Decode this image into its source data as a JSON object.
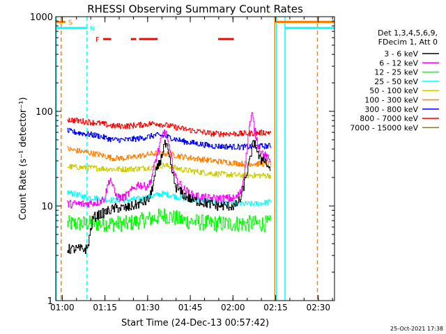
{
  "chart_data": {
    "type": "line",
    "title": "RHESSI Observing Summary Count Rates",
    "xlabel": "Start Time (24-Dec-13 00:57:42)",
    "ylabel": "Count Rate (s⁻¹ detector⁻¹)",
    "yscale": "log",
    "ylim": [
      1,
      1000
    ],
    "xlim_minutes_after_start": [
      0,
      98
    ],
    "x_ticks": [
      {
        "label": "01:00",
        "t": 2.3
      },
      {
        "label": "01:15",
        "t": 17.3
      },
      {
        "label": "01:30",
        "t": 32.3
      },
      {
        "label": "01:45",
        "t": 47.3
      },
      {
        "label": "02:00",
        "t": 62.3
      },
      {
        "label": "02:15",
        "t": 77.3
      },
      {
        "label": "02:30",
        "t": 92.3
      }
    ],
    "y_ticks": [
      {
        "label": "1",
        "v": 1
      },
      {
        "label": "10",
        "v": 10
      },
      {
        "label": "100",
        "v": 100
      },
      {
        "label": "1000",
        "v": 1000
      }
    ],
    "legend_header": [
      "Det 1,3,4,5,6,9,",
      "FDecim 1, Att 0"
    ],
    "legend_position": "right",
    "series": [
      {
        "name": "3 - 6 keV",
        "color": "#000000",
        "t": [
          4,
          11,
          13,
          15,
          17,
          19,
          21,
          23,
          25,
          27,
          29,
          31,
          33,
          35,
          37,
          38,
          39,
          40,
          42,
          45,
          48,
          51,
          54,
          57,
          60,
          63,
          65,
          66,
          67,
          68,
          69,
          70,
          71,
          72,
          73,
          74,
          75
        ],
        "values": [
          3.5,
          3.5,
          7.5,
          8,
          8.5,
          9,
          9.5,
          9.5,
          9.5,
          10,
          10.5,
          11,
          12,
          22,
          32,
          45,
          42,
          30,
          16,
          13,
          11.5,
          11,
          10.5,
          10,
          10,
          10,
          12,
          16,
          22,
          28,
          42,
          48,
          35,
          30,
          33,
          28,
          25
        ]
      },
      {
        "name": "6 - 12 keV",
        "color": "#ff00ff",
        "t": [
          4,
          10,
          15,
          17,
          19,
          21,
          23,
          25,
          27,
          29,
          31,
          33,
          35,
          37,
          38,
          39,
          40,
          42,
          45,
          48,
          51,
          54,
          57,
          60,
          63,
          65,
          66,
          67,
          68,
          69,
          70,
          71,
          72,
          73,
          74,
          75
        ],
        "values": [
          10.5,
          10.5,
          11,
          12,
          20,
          13,
          12,
          13,
          15,
          17,
          16,
          17,
          30,
          50,
          62,
          55,
          38,
          20,
          15,
          13,
          12.5,
          12,
          12,
          12,
          12,
          14,
          20,
          35,
          70,
          95,
          60,
          45,
          38,
          35,
          33,
          30
        ]
      },
      {
        "name": "12 - 25 keV",
        "color": "#00ff00",
        "t": [
          4,
          15,
          25,
          30,
          35,
          38,
          45,
          55,
          65,
          70,
          75
        ],
        "values": [
          6.5,
          6.5,
          6.5,
          7,
          7.5,
          8,
          7,
          6.5,
          6.5,
          6.5,
          6.5
        ]
      },
      {
        "name": "25 - 50 keV",
        "color": "#00ffff",
        "t": [
          4,
          10,
          15,
          20,
          25,
          30,
          35,
          38,
          45,
          55,
          65,
          70,
          75
        ],
        "values": [
          14,
          12.5,
          12,
          11.5,
          11.5,
          12,
          13,
          13.5,
          12,
          11,
          10.5,
          10.5,
          11
        ]
      },
      {
        "name": "50 - 100 keV",
        "color": "#cccc00",
        "t": [
          4,
          15,
          20,
          25,
          30,
          35,
          38,
          45,
          55,
          65,
          75
        ],
        "values": [
          26,
          25,
          24.5,
          24.5,
          25,
          26,
          27,
          24,
          22,
          21,
          21
        ]
      },
      {
        "name": "100 - 300 keV",
        "color": "#ff8000",
        "t": [
          4,
          15,
          20,
          25,
          30,
          35,
          38,
          45,
          55,
          65,
          75
        ],
        "values": [
          40,
          35,
          32,
          32,
          34,
          36,
          36,
          33,
          30,
          28,
          28
        ]
      },
      {
        "name": "300 - 800 keV",
        "color": "#0000ff",
        "t": [
          4,
          15,
          20,
          25,
          30,
          35,
          38,
          45,
          55,
          65,
          75
        ],
        "values": [
          62,
          55,
          50,
          50,
          52,
          56,
          55,
          48,
          43,
          42,
          43
        ]
      },
      {
        "name": "800 - 7000 keV",
        "color": "#ff0000",
        "t": [
          4,
          15,
          20,
          25,
          30,
          35,
          38,
          45,
          55,
          65,
          75
        ],
        "values": [
          82,
          75,
          70,
          70,
          72,
          75,
          72,
          65,
          58,
          58,
          60
        ]
      },
      {
        "name": "7000 - 15000 keV",
        "color": "#808000",
        "t": [],
        "values": []
      }
    ],
    "annotations": [
      {
        "label": "S",
        "color": "#ff8000",
        "t": 3.4,
        "level": 880
      },
      {
        "label": "N",
        "color": "#00ffff",
        "t": 11.0,
        "level": 760
      },
      {
        "label": "F",
        "color": "#ff0000",
        "t": 13.0,
        "level": 580
      }
    ],
    "flare_intervals": [
      {
        "t0": 16.7,
        "t1": 19.5,
        "level": 580
      },
      {
        "t0": 26.4,
        "t1": 28.3,
        "level": 580
      },
      {
        "t0": 29.3,
        "t1": 35.8,
        "level": 580
      },
      {
        "t0": 57.1,
        "t1": 62.6,
        "level": 580
      }
    ],
    "saa_intervals": [
      {
        "t0": 0,
        "t1": 3.4,
        "level": 880
      },
      {
        "t0": 77.5,
        "t1": 98,
        "level": 880
      }
    ],
    "night_intervals": [
      {
        "t0": 0,
        "t1": 11.0,
        "level": 760
      },
      {
        "t0": 80.6,
        "t1": 98,
        "level": 760
      }
    ],
    "vlines": [
      {
        "t": 0.2,
        "color": "#00ffff",
        "style": "solid"
      },
      {
        "t": 1.9,
        "color": "#ff8000",
        "style": "dash"
      },
      {
        "t": 11.0,
        "color": "#00ffff",
        "style": "dash"
      },
      {
        "t": 77.0,
        "color": "#ff8000",
        "style": "solid"
      },
      {
        "t": 77.6,
        "color": "#00ffff",
        "style": "solid"
      },
      {
        "t": 80.6,
        "color": "#00ffff",
        "style": "solid"
      },
      {
        "t": 92.0,
        "color": "#ff8000",
        "style": "dash"
      }
    ],
    "data_window": [
      4,
      75.5
    ],
    "footer_timestamp": "25-Oct-2021 17:38"
  }
}
